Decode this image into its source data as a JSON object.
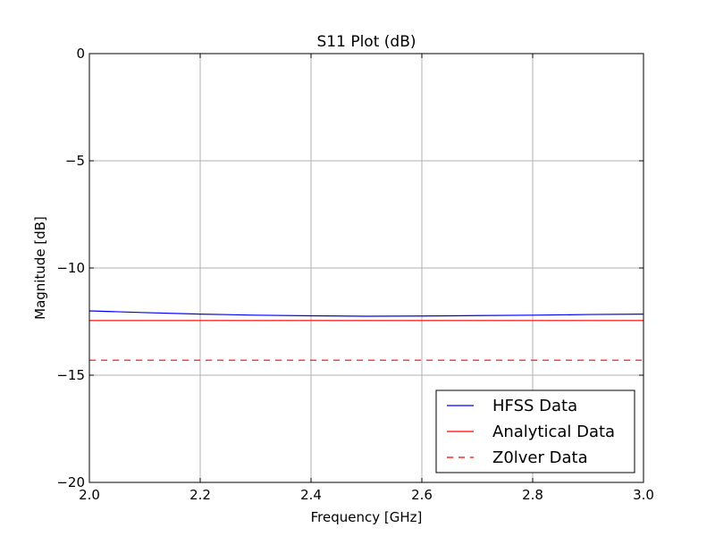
{
  "chart_data": {
    "type": "line",
    "title": "S11 Plot (dB)",
    "xlabel": "Frequency [GHz]",
    "ylabel": "Magnitude [dB]",
    "xlim": [
      2.0,
      3.0
    ],
    "ylim": [
      -20,
      0
    ],
    "xticks": [
      2.0,
      2.2,
      2.4,
      2.6,
      2.8,
      3.0
    ],
    "xtick_labels": [
      "2.0",
      "2.2",
      "2.4",
      "2.6",
      "2.8",
      "3.0"
    ],
    "yticks": [
      0,
      -5,
      -10,
      -15,
      -20
    ],
    "ytick_labels": [
      "0",
      "−5",
      "−10",
      "−15",
      "−20"
    ],
    "grid": true,
    "legend_position": "bottom-right",
    "series": [
      {
        "name": "HFSS Data",
        "color": "#0000ff",
        "style": "solid",
        "x": [
          2.0,
          2.1,
          2.2,
          2.3,
          2.4,
          2.5,
          2.6,
          2.7,
          2.8,
          2.9,
          3.0
        ],
        "y": [
          -12.0,
          -12.08,
          -12.15,
          -12.2,
          -12.23,
          -12.25,
          -12.24,
          -12.22,
          -12.2,
          -12.17,
          -12.15
        ]
      },
      {
        "name": "Analytical Data",
        "color": "#ff0000",
        "style": "solid",
        "x": [
          2.0,
          3.0
        ],
        "y": [
          -12.45,
          -12.45
        ]
      },
      {
        "name": "Z0lver Data",
        "color": "#ff0000",
        "style": "dashed",
        "x": [
          2.0,
          3.0
        ],
        "y": [
          -14.3,
          -14.3
        ]
      }
    ]
  }
}
